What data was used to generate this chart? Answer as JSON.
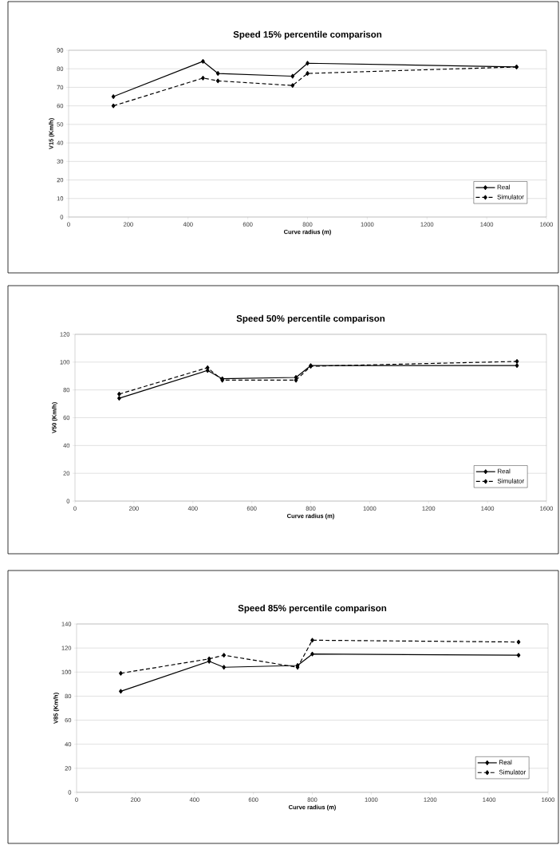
{
  "chart_data": [
    {
      "type": "line",
      "title": "Speed 15% percentile comparison",
      "xlabel": "Curve radius (m)",
      "ylabel": "V15 (Km/h)",
      "x": [
        150,
        450,
        500,
        750,
        800,
        1500
      ],
      "series": [
        {
          "name": "Real",
          "color": "#000000",
          "line_style": "solid",
          "values": [
            65,
            84,
            77.5,
            76,
            83,
            81
          ]
        },
        {
          "name": "Simulator",
          "color": "#000000",
          "line_style": "dashed",
          "values": [
            60,
            75,
            73.5,
            71,
            77.5,
            81
          ]
        }
      ],
      "xlim": [
        0,
        1600
      ],
      "ylim": [
        0,
        90
      ],
      "xticks": [
        0,
        200,
        400,
        600,
        800,
        1000,
        1200,
        1400,
        1600
      ],
      "yticks": [
        0,
        10,
        20,
        30,
        40,
        50,
        60,
        70,
        80,
        90
      ],
      "grid": "y",
      "legend": "bottom right",
      "marker": "diamond"
    },
    {
      "type": "line",
      "title": "Speed 50% percentile comparison",
      "xlabel": "Curve radius (m)",
      "ylabel": "V50 (Km/h)",
      "x": [
        150,
        450,
        500,
        750,
        800,
        1500
      ],
      "series": [
        {
          "name": "Real",
          "color": "#000000",
          "line_style": "solid",
          "values": [
            74,
            94,
            88,
            89,
            97.5,
            97.5
          ]
        },
        {
          "name": "Simulator",
          "color": "#000000",
          "line_style": "dashed",
          "values": [
            77,
            96,
            87,
            87,
            97,
            100.5
          ]
        }
      ],
      "xlim": [
        0,
        1600
      ],
      "ylim": [
        0,
        120
      ],
      "xticks": [
        0,
        200,
        400,
        600,
        800,
        1000,
        1200,
        1400,
        1600
      ],
      "yticks": [
        0,
        20,
        40,
        60,
        80,
        100,
        120
      ],
      "grid": "y",
      "legend": "bottom right",
      "marker": "diamond"
    },
    {
      "type": "line",
      "title": "Speed 85% percentile comparison",
      "xlabel": "Curve radius (m)",
      "ylabel": "V85 (Km/h)",
      "x": [
        150,
        450,
        500,
        750,
        800,
        1500
      ],
      "series": [
        {
          "name": "Real",
          "color": "#000000",
          "line_style": "solid",
          "values": [
            84,
            109,
            104,
            105.5,
            115,
            114
          ]
        },
        {
          "name": "Simulator",
          "color": "#000000",
          "line_style": "dashed",
          "values": [
            99,
            111,
            114,
            104,
            126.5,
            125
          ]
        }
      ],
      "xlim": [
        0,
        1600
      ],
      "ylim": [
        0,
        140
      ],
      "xticks": [
        0,
        200,
        400,
        600,
        800,
        1000,
        1200,
        1400,
        1600
      ],
      "yticks": [
        0,
        20,
        40,
        60,
        80,
        100,
        120,
        140
      ],
      "grid": "y",
      "legend": "bottom right",
      "marker": "diamond"
    }
  ]
}
